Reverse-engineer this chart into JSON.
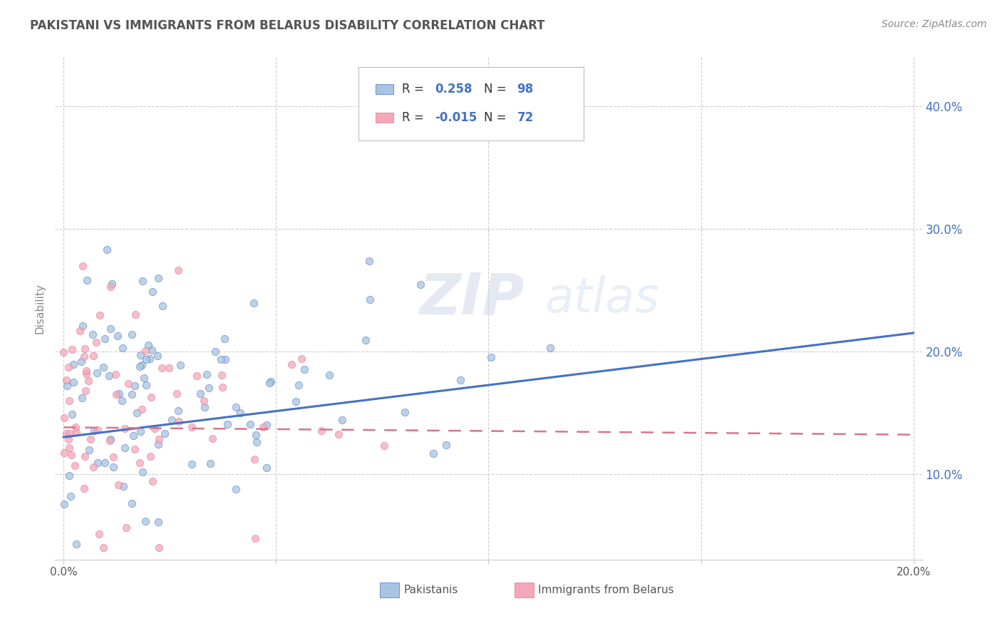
{
  "title": "PAKISTANI VS IMMIGRANTS FROM BELARUS DISABILITY CORRELATION CHART",
  "source": "Source: ZipAtlas.com",
  "ylabel": "Disability",
  "xlim": [
    -0.002,
    0.202
  ],
  "ylim": [
    0.03,
    0.44
  ],
  "x_ticks": [
    0.0,
    0.05,
    0.1,
    0.15,
    0.2
  ],
  "y_ticks": [
    0.1,
    0.2,
    0.3,
    0.4
  ],
  "y_tick_labels": [
    "10.0%",
    "20.0%",
    "30.0%",
    "40.0%"
  ],
  "pakistanis_color": "#a8c4e0",
  "belarus_color": "#f4a7b9",
  "pakistanis_line_color": "#4472c4",
  "belarus_line_color": "#d9748a",
  "R_pakistanis": 0.258,
  "N_pakistanis": 98,
  "R_belarus": -0.015,
  "N_belarus": 72,
  "legend_label_1": "Pakistanis",
  "legend_label_2": "Immigrants from Belarus",
  "watermark_zip": "ZIP",
  "watermark_atlas": "atlas",
  "background_color": "#ffffff",
  "grid_color": "#cccccc",
  "title_color": "#555555",
  "tick_color": "#4472c4",
  "ylabel_color": "#888888",
  "source_color": "#888888",
  "legend_r_color": "#333333",
  "legend_n_color": "#4472c4",
  "pak_line_y0": 0.13,
  "pak_line_y1": 0.215,
  "bel_line_y0": 0.138,
  "bel_line_y1": 0.132
}
